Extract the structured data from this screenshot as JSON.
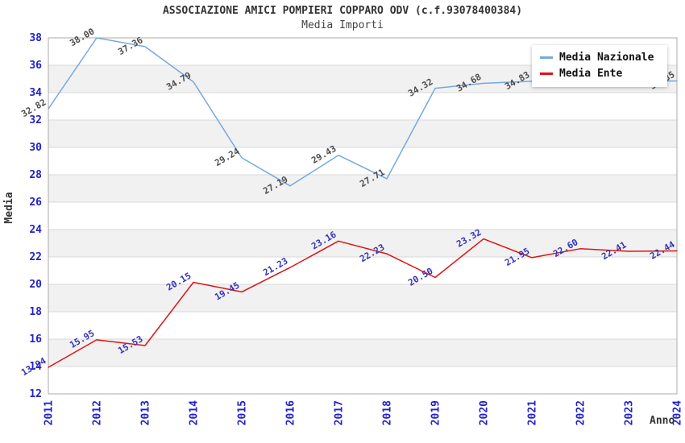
{
  "chart_data": {
    "type": "line",
    "title": "ASSOCIAZIONE AMICI POMPIERI COPPARO ODV (c.f.93078400384)",
    "subtitle": "Media Importi",
    "xlabel": "Anno",
    "ylabel": "Media",
    "x": [
      "2011",
      "2012",
      "2013",
      "2014",
      "2015",
      "2016",
      "2017",
      "2018",
      "2019",
      "2020",
      "2021",
      "2022",
      "2023",
      "2024"
    ],
    "ylim": [
      12,
      38
    ],
    "ytick_step": 2,
    "grid": "horizontal-only",
    "legend_position": "top-right",
    "series": [
      {
        "name": "Media Nazionale",
        "color": "#74A9E0",
        "label_color": "#4D4D4D",
        "values": [
          32.82,
          38.0,
          37.36,
          34.79,
          29.24,
          27.19,
          29.43,
          27.71,
          34.32,
          34.68,
          34.83,
          34.85,
          34.82,
          34.85
        ],
        "labels": [
          "32.82",
          "38.00",
          "37.36",
          "34.79",
          "29.24",
          "27.19",
          "29.43",
          "27.71",
          "34.32",
          "34.68",
          "34.83",
          "",
          "",
          "34.85"
        ]
      },
      {
        "name": "Media Ente",
        "color": "#E01212",
        "label_color": "#3333BB",
        "values": [
          13.94,
          15.95,
          15.53,
          20.15,
          19.45,
          21.23,
          23.16,
          22.23,
          20.5,
          23.32,
          21.95,
          22.6,
          22.41,
          22.44
        ],
        "labels": [
          "13.94",
          "15.95",
          "15.53",
          "20.15",
          "19.45",
          "21.23",
          "23.16",
          "22.23",
          "20.50",
          "23.32",
          "21.95",
          "22.60",
          "22.41",
          "22.44"
        ]
      }
    ],
    "plot_colors": {
      "band": "#F1F1F1",
      "gridline": "#D9D9D9",
      "border": "#ABABAB",
      "tick_label": "#2222CC",
      "axis_title": "#333333"
    }
  }
}
